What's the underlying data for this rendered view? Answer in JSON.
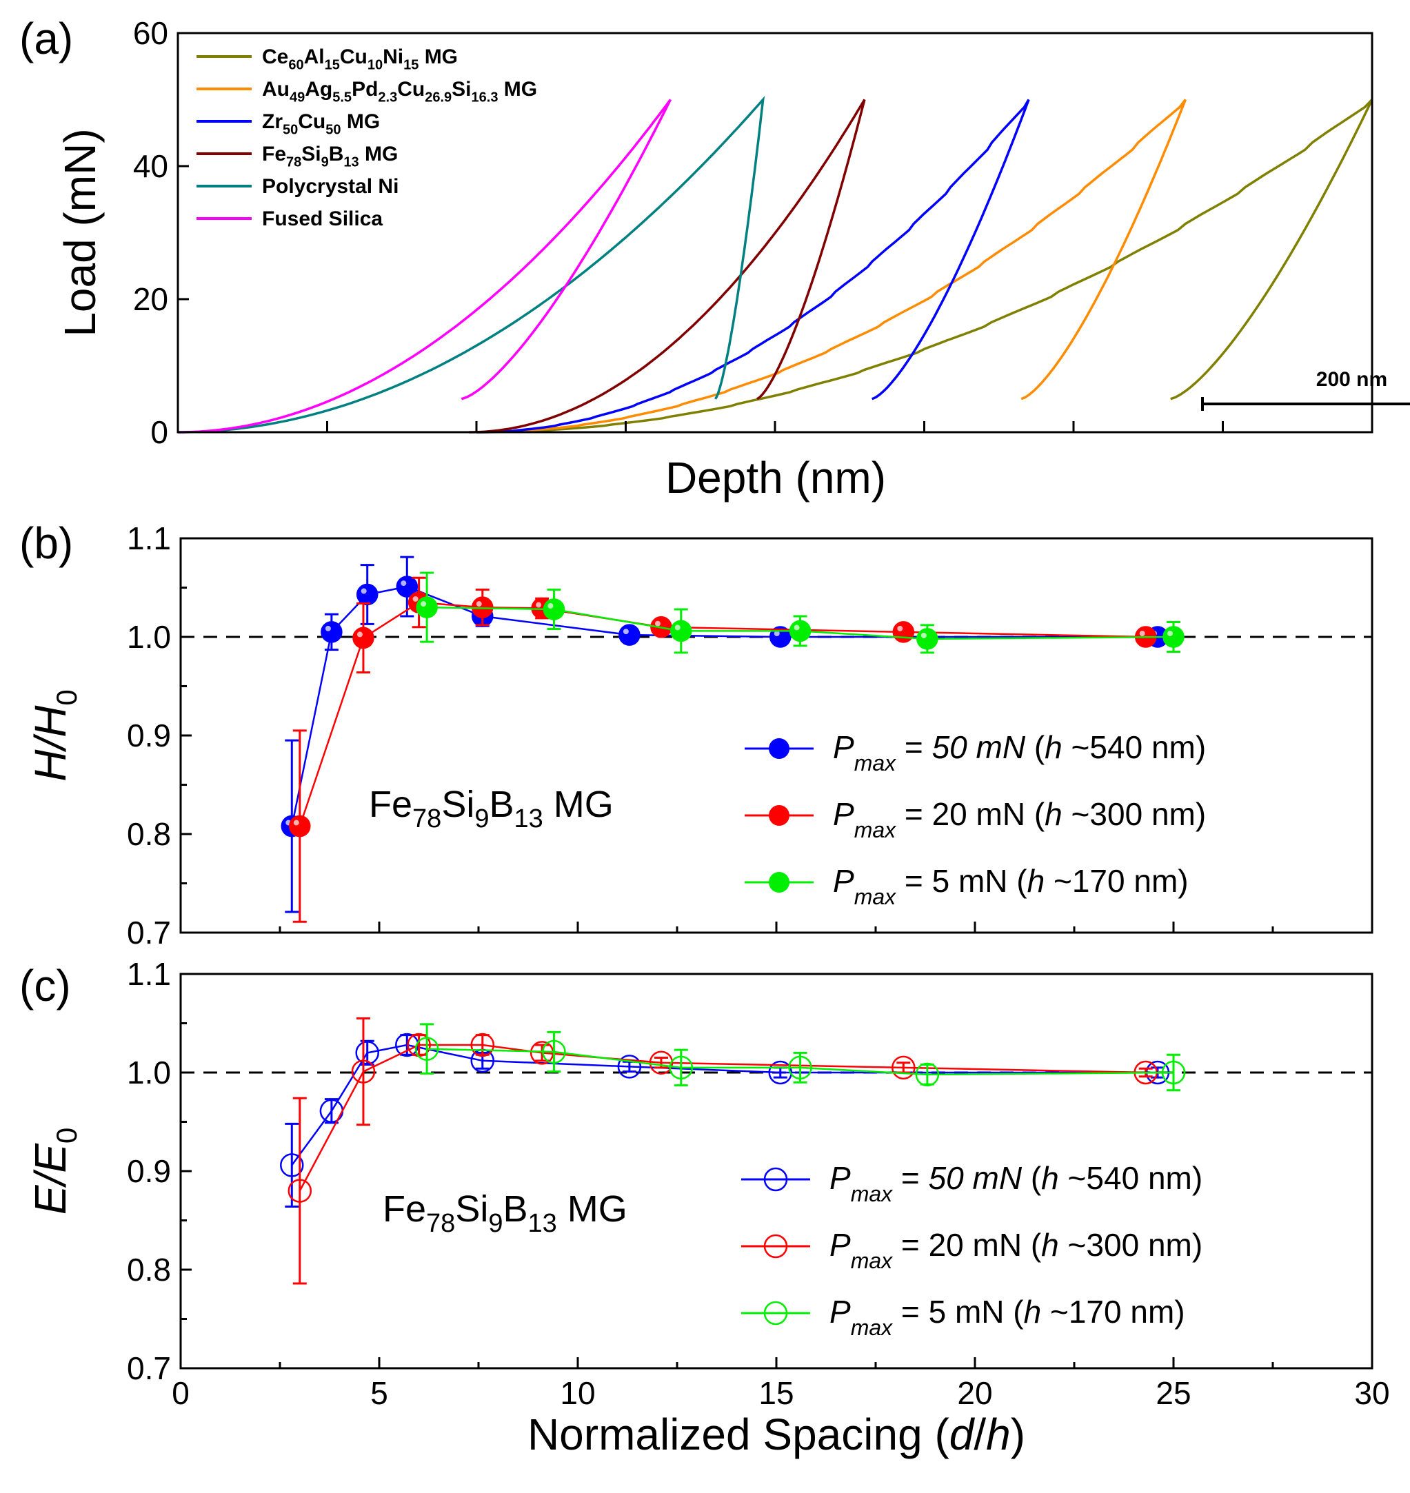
{
  "chart_data": [
    {
      "panel": "(a)",
      "type": "line",
      "xlabel": "Depth (nm)",
      "ylabel": "Load (mN)",
      "xlim": [
        0,
        800
      ],
      "ylim": [
        0,
        60
      ],
      "yticks": [
        0,
        20,
        40,
        60
      ],
      "xtick_count": 9,
      "show_xtick_labels": false,
      "scalebar_label": "200 nm",
      "scalebar_nm": 200,
      "series": [
        {
          "name": "Ce60Al15Cu10Ni15 MG",
          "label_parts": [
            [
              "Ce",
              ""
            ],
            [
              "60",
              "sub"
            ],
            [
              "Al",
              ""
            ],
            [
              "15",
              "sub"
            ],
            [
              "Cu",
              ""
            ],
            [
              "10",
              "sub"
            ],
            [
              "Ni",
              ""
            ],
            [
              "15",
              "sub"
            ],
            [
              " MG",
              ""
            ]
          ],
          "color": "#808000",
          "h0": 200,
          "hmax": 800,
          "hf": 748,
          "hu_start": 665,
          "pmax": 50,
          "pop_in": true
        },
        {
          "name": "Au49Ag5.5Pd2.3Cu26.9Si16.3 MG",
          "label_parts": [
            [
              "Au",
              ""
            ],
            [
              "49",
              "sub"
            ],
            [
              "Ag",
              ""
            ],
            [
              "5.5",
              "sub"
            ],
            [
              "Pd",
              ""
            ],
            [
              "2.3",
              "sub"
            ],
            [
              "Cu",
              ""
            ],
            [
              "26.9",
              "sub"
            ],
            [
              "Si",
              ""
            ],
            [
              "16.3",
              "sub"
            ],
            [
              " MG",
              ""
            ]
          ],
          "color": "#ff8c00",
          "h0": 200,
          "hmax": 675,
          "hf": 630,
          "hu_start": 565,
          "pmax": 50,
          "pop_in": true
        },
        {
          "name": "Zr50Cu50 MG",
          "label_parts": [
            [
              "Zr",
              ""
            ],
            [
              "50",
              "sub"
            ],
            [
              "Cu",
              ""
            ],
            [
              "50",
              "sub"
            ],
            [
              " MG",
              ""
            ]
          ],
          "color": "#0000ff",
          "h0": 200,
          "hmax": 570,
          "hf": 535,
          "hu_start": 465,
          "pmax": 50,
          "pop_in": true
        },
        {
          "name": "Fe78Si9B13 MG",
          "label_parts": [
            [
              "Fe",
              ""
            ],
            [
              "78",
              "sub"
            ],
            [
              "Si",
              ""
            ],
            [
              "9",
              "sub"
            ],
            [
              "B",
              ""
            ],
            [
              "13",
              "sub"
            ],
            [
              " MG",
              ""
            ]
          ],
          "color": "#800000",
          "h0": 195,
          "hmax": 460,
          "hf": 442,
          "hu_start": 388,
          "pmax": 50,
          "pop_in": false
        },
        {
          "name": "Polycrystal Ni",
          "label_parts": [
            [
              "Polycrystal Ni",
              ""
            ]
          ],
          "color": "#008080",
          "h0": 0,
          "hmax": 392,
          "hf": 387,
          "hu_start": 360,
          "pmax": 50,
          "pop_in": false
        },
        {
          "name": "Fused Silica",
          "label_parts": [
            [
              "Fused Silica",
              ""
            ]
          ],
          "color": "#ff00ff",
          "h0": 0,
          "hmax": 330,
          "hf": 328,
          "hu_start": 190,
          "pmax": 50,
          "pop_in": false
        }
      ]
    },
    {
      "panel": "(b)",
      "type": "scatter",
      "marker": "filled",
      "xlabel": "",
      "ylabel": "H/H0",
      "xlim": [
        0,
        30
      ],
      "ylim": [
        0.7,
        1.1
      ],
      "yticks": [
        0.7,
        0.8,
        0.9,
        1.0,
        1.1
      ],
      "xticks": [
        0,
        5,
        10,
        15,
        20,
        25,
        30
      ],
      "show_xtick_labels": false,
      "reference_line": 1.0,
      "annotation": "Fe78Si9B13 MG",
      "legend": "center-right",
      "series": [
        {
          "name": "Pmax = 50 mN (h ~540 nm)",
          "pmax_value": "50 mN",
          "depth": "540 nm",
          "italic_value": true,
          "color": "#0000ff",
          "x": [
            2.8,
            3.8,
            4.7,
            5.7,
            7.6,
            11.3,
            15.1,
            24.6
          ],
          "y": [
            0.808,
            1.005,
            1.043,
            1.051,
            1.021,
            1.002,
            1.0,
            1.0
          ],
          "err": [
            0.087,
            0.018,
            0.03,
            0.03,
            0.01,
            0.004,
            0.004,
            0.005
          ]
        },
        {
          "name": "Pmax = 20 mN (h ~300 nm)",
          "pmax_value": "20 mN",
          "depth": "300 nm",
          "italic_value": false,
          "color": "#ff0000",
          "x": [
            3.0,
            4.6,
            6.0,
            7.6,
            9.1,
            12.1,
            18.2,
            24.3
          ],
          "y": [
            0.808,
            0.999,
            1.035,
            1.03,
            1.029,
            1.01,
            1.005,
            1.0
          ],
          "err": [
            0.097,
            0.035,
            0.025,
            0.018,
            0.01,
            0.006,
            0.005,
            0.004
          ]
        },
        {
          "name": "Pmax = 5 mN (h ~170 nm)",
          "pmax_value": "5 mN",
          "depth": "170 nm",
          "italic_value": false,
          "color": "#00ee00",
          "x": [
            6.2,
            9.4,
            12.6,
            15.6,
            18.8,
            25.0
          ],
          "y": [
            1.03,
            1.028,
            1.006,
            1.006,
            0.998,
            1.0
          ],
          "err": [
            0.035,
            0.02,
            0.022,
            0.015,
            0.014,
            0.015
          ]
        }
      ]
    },
    {
      "panel": "(c)",
      "type": "scatter",
      "marker": "open",
      "xlabel": "Normalized Spacing (d/h)",
      "ylabel": "E/E0",
      "xlim": [
        0,
        30
      ],
      "ylim": [
        0.7,
        1.1
      ],
      "yticks": [
        0.7,
        0.8,
        0.9,
        1.0,
        1.1
      ],
      "xticks": [
        0,
        5,
        10,
        15,
        20,
        25,
        30
      ],
      "show_xtick_labels": true,
      "reference_line": 1.0,
      "annotation": "Fe78Si9B13 MG",
      "legend": "lower-right",
      "series": [
        {
          "name": "Pmax = 50 mN (h ~540 nm)",
          "pmax_value": "50 mN",
          "depth": "540 nm",
          "italic_value": true,
          "color": "#0000ff",
          "x": [
            2.8,
            3.8,
            4.7,
            5.7,
            7.6,
            11.3,
            15.1,
            24.6
          ],
          "y": [
            0.906,
            0.961,
            1.02,
            1.028,
            1.012,
            1.006,
            1.0,
            1.0
          ],
          "err": [
            0.042,
            0.012,
            0.012,
            0.01,
            0.008,
            0.005,
            0.005,
            0.005
          ]
        },
        {
          "name": "Pmax = 20 mN (h ~300 nm)",
          "pmax_value": "20 mN",
          "depth": "300 nm",
          "italic_value": false,
          "color": "#ff0000",
          "x": [
            3.0,
            4.6,
            6.0,
            7.6,
            9.1,
            12.1,
            18.2,
            24.3
          ],
          "y": [
            0.88,
            1.001,
            1.028,
            1.028,
            1.02,
            1.01,
            1.005,
            1.0
          ],
          "err": [
            0.094,
            0.054,
            0.01,
            0.01,
            0.008,
            0.005,
            0.005,
            0.004
          ]
        },
        {
          "name": "Pmax = 5 mN (h ~170 nm)",
          "pmax_value": "5 mN",
          "depth": "170 nm",
          "italic_value": false,
          "color": "#00ee00",
          "x": [
            6.2,
            9.4,
            12.6,
            15.6,
            18.8,
            25.0
          ],
          "y": [
            1.024,
            1.021,
            1.005,
            1.005,
            0.998,
            1.0
          ],
          "err": [
            0.025,
            0.02,
            0.018,
            0.015,
            0.01,
            0.018
          ]
        }
      ]
    }
  ]
}
